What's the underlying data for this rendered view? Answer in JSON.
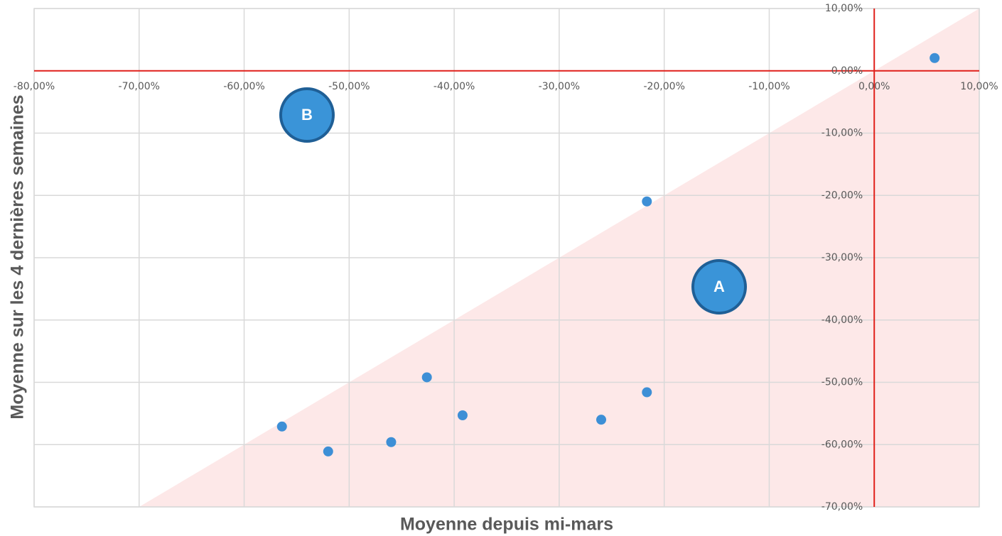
{
  "chart_data": {
    "type": "scatter",
    "x_label": "Moyenne depuis mi-mars",
    "y_label": "Moyenne sur les 4 dernières semaines",
    "x": [
      5.75,
      -21.65,
      -56.4,
      -52.0,
      -46.0,
      -42.6,
      -39.2,
      -26.0,
      -21.65
    ],
    "values": [
      2.05,
      -20.97,
      -57.1,
      -61.1,
      -59.6,
      -49.2,
      -55.3,
      -56.0,
      -51.6
    ],
    "color": "#3d8fd6",
    "xlim": [
      -80,
      10
    ],
    "ylim": [
      -70,
      10
    ],
    "xticks": [
      {
        "value": -80,
        "label": "-80,00%"
      },
      {
        "value": -70,
        "label": "-70,00%"
      },
      {
        "value": -60,
        "label": "-60,00%"
      },
      {
        "value": -50,
        "label": "-50,00%"
      },
      {
        "value": -40,
        "label": "-40,00%"
      },
      {
        "value": -30,
        "label": "-30,00%"
      },
      {
        "value": -20,
        "label": "-20,00%"
      },
      {
        "value": -10,
        "label": "-10,00%"
      },
      {
        "value": 0,
        "label": "0,00%"
      },
      {
        "value": 10,
        "label": "10,00%"
      }
    ],
    "yticks": [
      {
        "value": 10,
        "label": "10,00%"
      },
      {
        "value": 0,
        "label": "0,00%"
      },
      {
        "value": -10,
        "label": "-10,00%"
      },
      {
        "value": -20,
        "label": "-20,00%"
      },
      {
        "value": -30,
        "label": "-30,00%"
      },
      {
        "value": -40,
        "label": "-40,00%"
      },
      {
        "value": -50,
        "label": "-50,00%"
      },
      {
        "value": -60,
        "label": "-60,00%"
      },
      {
        "value": -70,
        "label": "-70,00%"
      }
    ],
    "grid": true,
    "reference_lines": {
      "x": 0,
      "y": 0,
      "color": "#e0201b"
    },
    "diagonal_fill": "#fde8e8",
    "annotations": [
      "A",
      "B"
    ]
  }
}
